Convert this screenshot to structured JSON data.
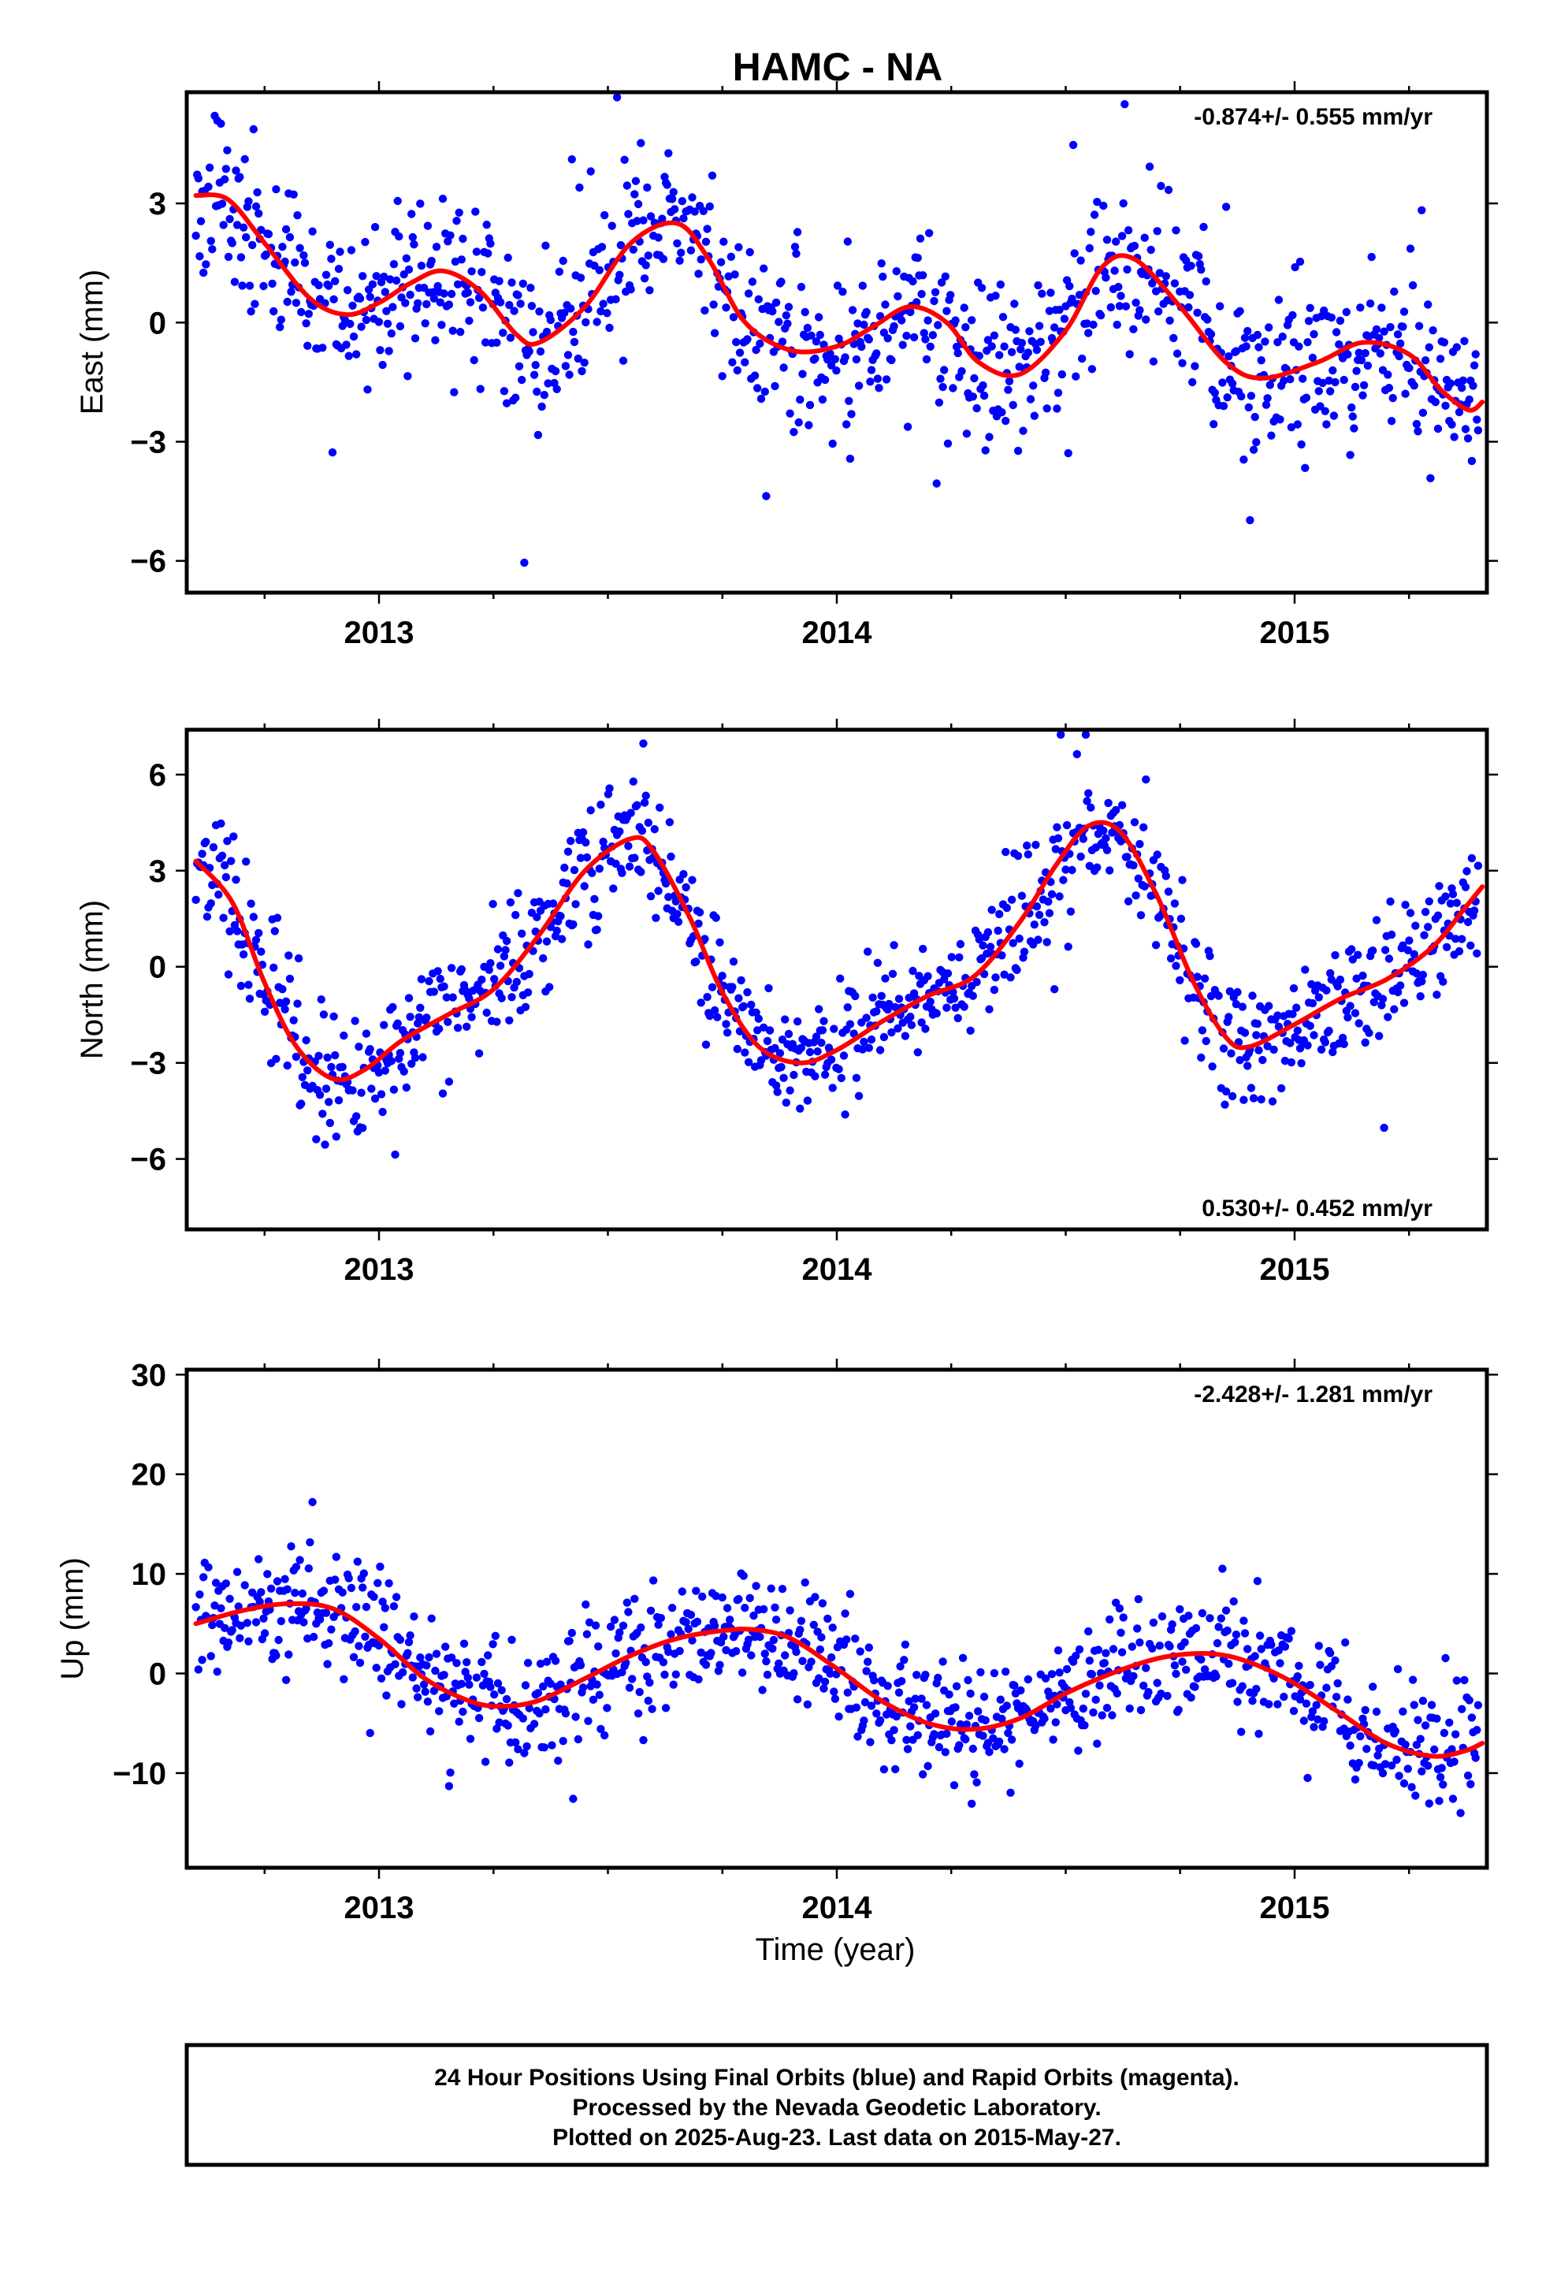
{
  "title": "HAMC - NA",
  "colors": {
    "points": "#0000ff",
    "fit": "#ff0000",
    "frame": "#000000",
    "background": "#ffffff"
  },
  "chart_data": [
    {
      "type": "scatter",
      "ylabel": "East (mm)",
      "rate": "-0.874+/- 0.555 mm/yr",
      "rate_position": "top-right",
      "xlim": [
        2012.58,
        2015.42
      ],
      "ylim": [
        -6.8,
        5.8
      ],
      "xticks": [
        2013,
        2014,
        2015
      ],
      "xtick_labels": [
        "2013",
        "2014",
        "2015"
      ],
      "yticks": [
        -6,
        -3,
        0,
        3
      ],
      "ytick_labels": [
        "−6",
        "−3",
        "0",
        "3"
      ],
      "grid": false,
      "noise": 1.25,
      "seed": 11,
      "series": [
        {
          "x": [
            2012.6,
            2012.67,
            2012.75,
            2012.85,
            2012.93,
            2013.0,
            2013.07,
            2013.14,
            2013.22,
            2013.3,
            2013.35,
            2013.45,
            2013.55,
            2013.65,
            2013.72,
            2013.8,
            2013.9,
            2014.0,
            2014.08,
            2014.16,
            2014.24,
            2014.31,
            2014.4,
            2014.5,
            2014.58,
            2014.65,
            2014.75,
            2014.85,
            2014.93,
            2015.05,
            2015.15,
            2015.25,
            2015.32,
            2015.38,
            2015.41
          ],
          "y": [
            3.2,
            3.1,
            2.0,
            0.6,
            0.2,
            0.5,
            1.0,
            1.3,
            0.8,
            -0.3,
            -0.5,
            0.4,
            2.0,
            2.5,
            1.6,
            0.0,
            -0.7,
            -0.6,
            -0.1,
            0.4,
            0.0,
            -1.0,
            -1.3,
            -0.2,
            1.4,
            1.6,
            0.4,
            -1.0,
            -1.4,
            -1.0,
            -0.5,
            -0.8,
            -1.7,
            -2.2,
            -2.0
          ]
        }
      ]
    },
    {
      "type": "scatter",
      "ylabel": "North (mm)",
      "rate": "0.530+/- 0.452 mm/yr",
      "rate_position": "bottom-right",
      "xlim": [
        2012.58,
        2015.42
      ],
      "ylim": [
        -8.2,
        7.4
      ],
      "xticks": [
        2013,
        2014,
        2015
      ],
      "xtick_labels": [
        "2013",
        "2014",
        "2015"
      ],
      "yticks": [
        -6,
        -3,
        0,
        3,
        6
      ],
      "ytick_labels": [
        "−6",
        "−3",
        "0",
        "3",
        "6"
      ],
      "grid": false,
      "noise": 1.1,
      "seed": 23,
      "series": [
        {
          "x": [
            2012.6,
            2012.68,
            2012.75,
            2012.82,
            2012.9,
            2012.97,
            2013.05,
            2013.15,
            2013.25,
            2013.35,
            2013.45,
            2013.55,
            2013.6,
            2013.68,
            2013.75,
            2013.83,
            2013.92,
            2014.0,
            2014.1,
            2014.2,
            2014.3,
            2014.4,
            2014.48,
            2014.55,
            2014.62,
            2014.7,
            2014.78,
            2014.85,
            2014.9,
            2015.0,
            2015.1,
            2015.2,
            2015.3,
            2015.37,
            2015.41
          ],
          "y": [
            3.3,
            2.0,
            -0.5,
            -2.5,
            -3.5,
            -3.2,
            -2.3,
            -1.5,
            -0.7,
            1.0,
            3.0,
            4.0,
            3.6,
            1.5,
            -0.8,
            -2.5,
            -3.0,
            -2.6,
            -1.7,
            -0.9,
            -0.3,
            1.4,
            3.2,
            4.4,
            4.2,
            2.2,
            -0.5,
            -2.2,
            -2.5,
            -1.8,
            -1.0,
            -0.4,
            0.6,
            1.8,
            2.5
          ]
        }
      ]
    },
    {
      "type": "scatter",
      "ylabel": "Up (mm)",
      "xlabel": "Time (year)",
      "rate": "-2.428+/- 1.281 mm/yr",
      "rate_position": "top-right",
      "xlim": [
        2012.58,
        2015.42
      ],
      "ylim": [
        -19.5,
        30.5
      ],
      "xticks": [
        2013,
        2014,
        2015
      ],
      "xtick_labels": [
        "2013",
        "2014",
        "2015"
      ],
      "yticks": [
        -10,
        0,
        10,
        20,
        30
      ],
      "ytick_labels": [
        "−10",
        "0",
        "10",
        "20",
        "30"
      ],
      "grid": false,
      "noise": 3.6,
      "seed": 37,
      "series": [
        {
          "x": [
            2012.6,
            2012.7,
            2012.8,
            2012.9,
            2013.0,
            2013.1,
            2013.2,
            2013.27,
            2013.35,
            2013.45,
            2013.55,
            2013.65,
            2013.75,
            2013.82,
            2013.9,
            2014.0,
            2014.1,
            2014.2,
            2014.3,
            2014.4,
            2014.5,
            2014.6,
            2014.7,
            2014.78,
            2014.85,
            2014.92,
            2015.0,
            2015.1,
            2015.2,
            2015.3,
            2015.37,
            2015.41
          ],
          "y": [
            5.0,
            6.3,
            7.0,
            6.5,
            3.5,
            -0.5,
            -2.8,
            -3.3,
            -2.7,
            -0.5,
            1.8,
            3.5,
            4.3,
            4.4,
            3.5,
            0.5,
            -2.8,
            -5.0,
            -5.6,
            -4.5,
            -2.0,
            0.0,
            1.5,
            2.0,
            1.8,
            0.8,
            -1.0,
            -4.0,
            -7.0,
            -8.3,
            -7.8,
            -7.0
          ]
        }
      ]
    }
  ],
  "footer": {
    "line1": "24 Hour Positions Using Final Orbits (blue) and Rapid Orbits (magenta).",
    "line2": "Processed by the Nevada Geodetic Laboratory.",
    "line3": "Plotted on 2025-Aug-23. Last data on 2015-May-27."
  }
}
